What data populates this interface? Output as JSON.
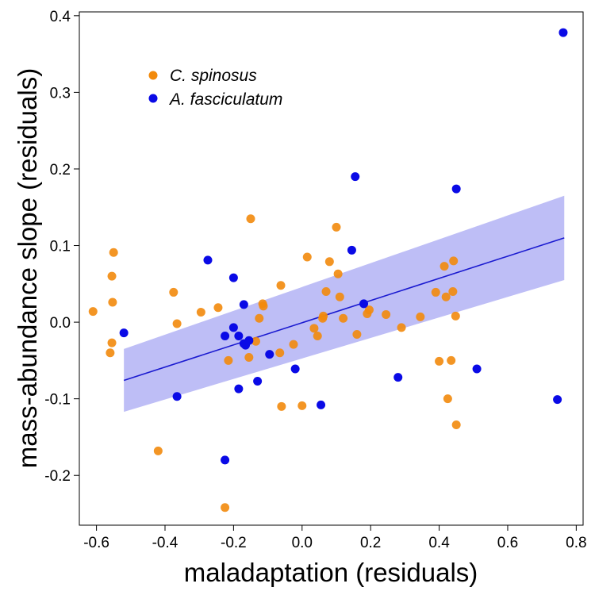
{
  "chart_data": {
    "type": "scatter",
    "title": "",
    "xlabel": "maladaptation (residuals)",
    "ylabel": "mass-abundance slope (residuals)",
    "xlim": [
      -0.65,
      0.82
    ],
    "ylim": [
      -0.265,
      0.405
    ],
    "xticks": [
      -0.6,
      -0.4,
      -0.2,
      0.0,
      0.2,
      0.4,
      0.6,
      0.8
    ],
    "xtick_labels": [
      "-0.6",
      "-0.4",
      "-0.2",
      "0.0",
      "0.2",
      "0.4",
      "0.6",
      "0.8"
    ],
    "yticks": [
      -0.2,
      -0.1,
      0.0,
      0.1,
      0.2,
      0.3,
      0.4
    ],
    "ytick_labels": [
      "-0.2",
      "-0.1",
      "0.0",
      "0.1",
      "0.2",
      "0.3",
      "0.4"
    ],
    "grid": false,
    "legend_position": "top-left",
    "series": [
      {
        "name": "C. spinosus",
        "color": "#f28a0c",
        "points": [
          [
            -0.61,
            0.014
          ],
          [
            -0.56,
            -0.04
          ],
          [
            -0.555,
            -0.027
          ],
          [
            -0.555,
            0.06
          ],
          [
            -0.553,
            0.026
          ],
          [
            -0.55,
            0.091
          ],
          [
            -0.42,
            -0.168
          ],
          [
            -0.375,
            0.039
          ],
          [
            -0.365,
            -0.002
          ],
          [
            -0.295,
            0.013
          ],
          [
            -0.245,
            0.019
          ],
          [
            -0.225,
            -0.242
          ],
          [
            -0.215,
            -0.05
          ],
          [
            -0.155,
            -0.046
          ],
          [
            -0.15,
            0.135
          ],
          [
            -0.135,
            -0.025
          ],
          [
            -0.125,
            0.005
          ],
          [
            -0.115,
            0.024
          ],
          [
            -0.113,
            0.021
          ],
          [
            -0.065,
            -0.04
          ],
          [
            -0.062,
            0.048
          ],
          [
            -0.06,
            -0.11
          ],
          [
            -0.025,
            -0.029
          ],
          [
            0.0,
            -0.109
          ],
          [
            0.015,
            0.085
          ],
          [
            0.035,
            -0.008
          ],
          [
            0.045,
            -0.018
          ],
          [
            0.06,
            0.005
          ],
          [
            0.062,
            0.008
          ],
          [
            0.07,
            0.04
          ],
          [
            0.08,
            0.079
          ],
          [
            0.1,
            0.124
          ],
          [
            0.105,
            0.063
          ],
          [
            0.11,
            0.033
          ],
          [
            0.12,
            0.005
          ],
          [
            0.16,
            -0.016
          ],
          [
            0.19,
            0.011
          ],
          [
            0.196,
            0.016
          ],
          [
            0.245,
            0.01
          ],
          [
            0.29,
            -0.007
          ],
          [
            0.345,
            0.007
          ],
          [
            0.39,
            0.039
          ],
          [
            0.4,
            -0.051
          ],
          [
            0.415,
            0.073
          ],
          [
            0.42,
            0.033
          ],
          [
            0.425,
            -0.1
          ],
          [
            0.435,
            -0.05
          ],
          [
            0.44,
            0.04
          ],
          [
            0.442,
            0.08
          ],
          [
            0.448,
            0.008
          ],
          [
            0.45,
            -0.134
          ]
        ]
      },
      {
        "name": "A. fasciculatum",
        "color": "#0a0ae6",
        "points": [
          [
            -0.52,
            -0.014
          ],
          [
            -0.365,
            -0.097
          ],
          [
            -0.275,
            0.081
          ],
          [
            -0.225,
            -0.018
          ],
          [
            -0.225,
            -0.18
          ],
          [
            -0.2,
            -0.007
          ],
          [
            -0.2,
            0.058
          ],
          [
            -0.185,
            -0.087
          ],
          [
            -0.185,
            -0.018
          ],
          [
            -0.17,
            0.023
          ],
          [
            -0.17,
            -0.028
          ],
          [
            -0.165,
            -0.03
          ],
          [
            -0.155,
            -0.024
          ],
          [
            -0.13,
            -0.077
          ],
          [
            -0.095,
            -0.042
          ],
          [
            -0.02,
            -0.061
          ],
          [
            0.055,
            -0.108
          ],
          [
            0.145,
            0.094
          ],
          [
            0.155,
            0.19
          ],
          [
            0.18,
            0.024
          ],
          [
            0.28,
            -0.072
          ],
          [
            0.45,
            0.174
          ],
          [
            0.51,
            -0.061
          ],
          [
            0.745,
            -0.101
          ],
          [
            0.762,
            0.378
          ]
        ]
      }
    ],
    "fit_line": {
      "x": [
        -0.52,
        0.765
      ],
      "y": [
        -0.076,
        0.11
      ],
      "color": "#1a1ad0"
    },
    "confidence_band": {
      "x": [
        -0.52,
        0.765
      ],
      "upper": [
        -0.035,
        0.165
      ],
      "lower": [
        -0.117,
        0.055
      ],
      "color": "#b3b3f5"
    }
  }
}
